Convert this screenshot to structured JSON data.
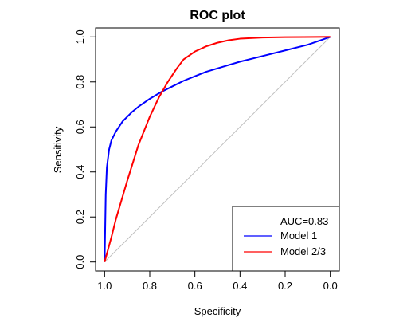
{
  "chart_data": {
    "type": "line",
    "title": "ROC plot",
    "xlabel": "Specificity",
    "ylabel": "Sensitivity",
    "xlim": [
      1.04,
      -0.04
    ],
    "ylim": [
      -0.04,
      1.04
    ],
    "x_reversed": true,
    "x_ticks": [
      1.0,
      0.8,
      0.6,
      0.4,
      0.2,
      0.0
    ],
    "x_tick_labels": [
      "1.0",
      "0.8",
      "0.6",
      "0.4",
      "0.2",
      "0.0"
    ],
    "y_ticks": [
      0.0,
      0.2,
      0.4,
      0.6,
      0.8,
      1.0
    ],
    "y_tick_labels": [
      "0.0",
      "0.2",
      "0.4",
      "0.6",
      "0.8",
      "1.0"
    ],
    "grid": false,
    "legend_position": "bottom-right",
    "legend_header": "AUC=0.83",
    "reference_line": {
      "color": "#bebebe",
      "points": [
        [
          1.0,
          0.0
        ],
        [
          0.0,
          1.0
        ]
      ]
    },
    "series": [
      {
        "name": "Model 1",
        "color": "#0000ff",
        "points": [
          [
            1.0,
            0.0
          ],
          [
            0.995,
            0.3
          ],
          [
            0.99,
            0.42
          ],
          [
            0.98,
            0.5
          ],
          [
            0.97,
            0.54
          ],
          [
            0.95,
            0.58
          ],
          [
            0.92,
            0.625
          ],
          [
            0.88,
            0.665
          ],
          [
            0.85,
            0.69
          ],
          [
            0.8,
            0.725
          ],
          [
            0.75,
            0.755
          ],
          [
            0.7,
            0.78
          ],
          [
            0.65,
            0.805
          ],
          [
            0.6,
            0.825
          ],
          [
            0.55,
            0.845
          ],
          [
            0.5,
            0.86
          ],
          [
            0.45,
            0.875
          ],
          [
            0.4,
            0.89
          ],
          [
            0.3,
            0.915
          ],
          [
            0.2,
            0.94
          ],
          [
            0.1,
            0.965
          ],
          [
            0.0,
            1.0
          ]
        ]
      },
      {
        "name": "Model 2/3",
        "color": "#ff0000",
        "points": [
          [
            1.0,
            0.0
          ],
          [
            0.97,
            0.11
          ],
          [
            0.95,
            0.19
          ],
          [
            0.9,
            0.36
          ],
          [
            0.85,
            0.52
          ],
          [
            0.8,
            0.645
          ],
          [
            0.76,
            0.73
          ],
          [
            0.72,
            0.8
          ],
          [
            0.68,
            0.86
          ],
          [
            0.65,
            0.9
          ],
          [
            0.6,
            0.935
          ],
          [
            0.55,
            0.958
          ],
          [
            0.5,
            0.974
          ],
          [
            0.45,
            0.985
          ],
          [
            0.4,
            0.992
          ],
          [
            0.3,
            0.997
          ],
          [
            0.2,
            0.999
          ],
          [
            0.0,
            1.0
          ]
        ]
      }
    ]
  }
}
